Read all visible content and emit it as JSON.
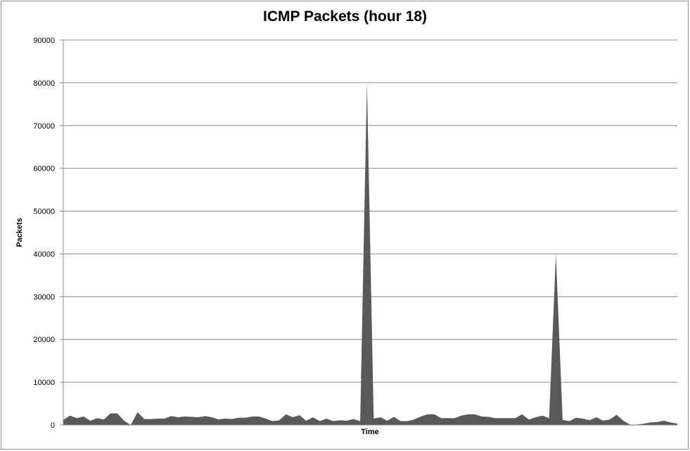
{
  "chart_data": {
    "type": "area",
    "title": "ICMP Packets (hour 18)",
    "xlabel": "Time",
    "ylabel": "Packets",
    "ylim": [
      0,
      90000
    ],
    "yticks": [
      "0",
      "10000",
      "20000",
      "30000",
      "40000",
      "50000",
      "60000",
      "70000",
      "80000",
      "90000"
    ],
    "grid": true,
    "legend": "none",
    "colors": {
      "fill": "#595959",
      "grid": "#8c8c8c",
      "axis": "#8c8c8c"
    },
    "series": [
      {
        "values": [
          1200,
          2200,
          1600,
          2000,
          1000,
          1600,
          1300,
          2700,
          2700,
          1000,
          0,
          3000,
          1400,
          1400,
          1500,
          1500,
          2100,
          1800,
          2000,
          1900,
          1800,
          2100,
          1800,
          1300,
          1500,
          1400,
          1700,
          1700,
          2000,
          2000,
          1500,
          900,
          1100,
          2500,
          1800,
          2300,
          1000,
          1800,
          900,
          1500,
          900,
          1100,
          1000,
          1400,
          900,
          80000,
          1500,
          1800,
          1000,
          1900,
          900,
          900,
          1300,
          2000,
          2500,
          2500,
          1600,
          1600,
          1600,
          2200,
          2500,
          2500,
          2000,
          1900,
          1600,
          1600,
          1600,
          1600,
          2500,
          1300,
          1800,
          2200,
          1600,
          40000,
          1200,
          900,
          1700,
          1500,
          1100,
          1800,
          1000,
          1300,
          2400,
          1000,
          100,
          100,
          300,
          600,
          700,
          1000,
          600,
          300
        ]
      }
    ]
  }
}
